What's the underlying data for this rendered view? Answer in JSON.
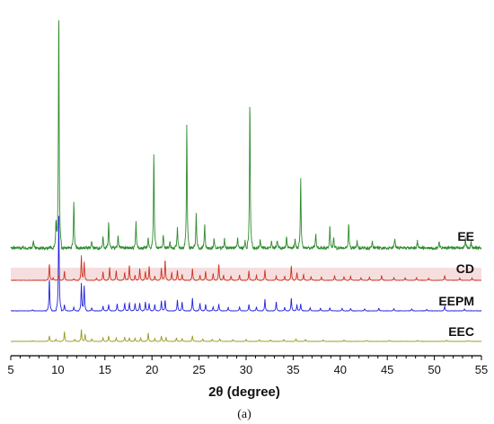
{
  "chart_data": {
    "type": "line",
    "title": "",
    "xlabel": "2θ (degree)",
    "ylabel": "",
    "xlim": [
      5,
      55
    ],
    "x_ticks": [
      5,
      10,
      15,
      20,
      25,
      30,
      35,
      40,
      45,
      50,
      55
    ],
    "y_axis_visible": false,
    "grid": false,
    "legend": "none; each pattern labelled at its right end",
    "caption": "(a)",
    "series": [
      {
        "name": "EE",
        "color": "#2e8b2e",
        "peaks": [
          [
            7.4,
            0.03
          ],
          [
            9.8,
            0.12
          ],
          [
            10.1,
            1.0
          ],
          [
            11.7,
            0.2
          ],
          [
            13.6,
            0.03
          ],
          [
            14.8,
            0.05
          ],
          [
            15.4,
            0.11
          ],
          [
            16.4,
            0.05
          ],
          [
            18.3,
            0.11
          ],
          [
            19.6,
            0.04
          ],
          [
            20.2,
            0.4
          ],
          [
            21.2,
            0.06
          ],
          [
            21.9,
            0.03
          ],
          [
            22.7,
            0.09
          ],
          [
            23.7,
            0.52
          ],
          [
            24.7,
            0.15
          ],
          [
            25.6,
            0.1
          ],
          [
            26.6,
            0.04
          ],
          [
            27.7,
            0.04
          ],
          [
            29.1,
            0.04
          ],
          [
            29.9,
            0.03
          ],
          [
            30.4,
            0.62
          ],
          [
            31.5,
            0.04
          ],
          [
            32.7,
            0.03
          ],
          [
            33.3,
            0.03
          ],
          [
            34.3,
            0.05
          ],
          [
            35.2,
            0.04
          ],
          [
            35.8,
            0.29
          ],
          [
            37.4,
            0.06
          ],
          [
            38.9,
            0.09
          ],
          [
            39.3,
            0.05
          ],
          [
            40.9,
            0.11
          ],
          [
            41.8,
            0.03
          ],
          [
            43.4,
            0.03
          ],
          [
            45.8,
            0.04
          ],
          [
            48.2,
            0.03
          ],
          [
            50.5,
            0.03
          ],
          [
            53.3,
            0.04
          ],
          [
            53.9,
            0.03
          ]
        ]
      },
      {
        "name": "CD",
        "color": "#cc3322",
        "peaks": [
          [
            9.1,
            0.62
          ],
          [
            9.5,
            0.1
          ],
          [
            10.1,
            0.15
          ],
          [
            10.7,
            0.34
          ],
          [
            11.7,
            0.06
          ],
          [
            12.5,
            0.92
          ],
          [
            12.8,
            0.7
          ],
          [
            14.1,
            0.08
          ],
          [
            14.8,
            0.33
          ],
          [
            15.5,
            0.48
          ],
          [
            16.2,
            0.36
          ],
          [
            17.1,
            0.3
          ],
          [
            17.6,
            0.58
          ],
          [
            18.2,
            0.2
          ],
          [
            18.7,
            0.44
          ],
          [
            19.3,
            0.34
          ],
          [
            19.7,
            0.52
          ],
          [
            20.3,
            0.16
          ],
          [
            21.0,
            0.46
          ],
          [
            21.4,
            0.78
          ],
          [
            22.1,
            0.3
          ],
          [
            22.7,
            0.38
          ],
          [
            23.2,
            0.22
          ],
          [
            24.3,
            0.44
          ],
          [
            25.1,
            0.2
          ],
          [
            25.7,
            0.34
          ],
          [
            26.5,
            0.26
          ],
          [
            27.1,
            0.62
          ],
          [
            27.6,
            0.2
          ],
          [
            28.4,
            0.16
          ],
          [
            29.3,
            0.2
          ],
          [
            30.3,
            0.36
          ],
          [
            31.1,
            0.2
          ],
          [
            32.0,
            0.38
          ],
          [
            33.2,
            0.16
          ],
          [
            34.1,
            0.16
          ],
          [
            34.8,
            0.54
          ],
          [
            35.4,
            0.3
          ],
          [
            36.1,
            0.22
          ],
          [
            36.9,
            0.14
          ],
          [
            38.0,
            0.12
          ],
          [
            39.4,
            0.18
          ],
          [
            40.4,
            0.14
          ],
          [
            41.1,
            0.16
          ],
          [
            42.2,
            0.1
          ],
          [
            43.1,
            0.12
          ],
          [
            44.4,
            0.18
          ],
          [
            45.7,
            0.1
          ],
          [
            46.9,
            0.1
          ],
          [
            48.1,
            0.1
          ],
          [
            49.4,
            0.08
          ],
          [
            51.1,
            0.18
          ],
          [
            52.7,
            0.08
          ],
          [
            54.0,
            0.08
          ]
        ]
      },
      {
        "name": "EEPM",
        "color": "#2222dd",
        "peaks": [
          [
            7.3,
            0.04
          ],
          [
            9.1,
            1.3
          ],
          [
            10.1,
            4.0
          ],
          [
            10.7,
            0.25
          ],
          [
            11.7,
            0.15
          ],
          [
            12.5,
            1.1
          ],
          [
            12.8,
            1.02
          ],
          [
            13.6,
            0.12
          ],
          [
            14.8,
            0.2
          ],
          [
            15.4,
            0.25
          ],
          [
            16.3,
            0.28
          ],
          [
            17.1,
            0.3
          ],
          [
            17.6,
            0.32
          ],
          [
            18.2,
            0.3
          ],
          [
            18.7,
            0.32
          ],
          [
            19.3,
            0.36
          ],
          [
            19.7,
            0.3
          ],
          [
            20.3,
            0.26
          ],
          [
            21.0,
            0.4
          ],
          [
            21.4,
            0.44
          ],
          [
            22.7,
            0.44
          ],
          [
            23.2,
            0.36
          ],
          [
            24.3,
            0.52
          ],
          [
            25.1,
            0.3
          ],
          [
            25.7,
            0.26
          ],
          [
            26.5,
            0.16
          ],
          [
            27.1,
            0.26
          ],
          [
            28.1,
            0.14
          ],
          [
            29.3,
            0.16
          ],
          [
            30.3,
            0.26
          ],
          [
            31.1,
            0.16
          ],
          [
            32.0,
            0.46
          ],
          [
            33.2,
            0.36
          ],
          [
            34.1,
            0.14
          ],
          [
            34.8,
            0.5
          ],
          [
            35.4,
            0.24
          ],
          [
            35.8,
            0.28
          ],
          [
            36.8,
            0.12
          ],
          [
            37.9,
            0.1
          ],
          [
            38.9,
            0.12
          ],
          [
            40.2,
            0.1
          ],
          [
            41.1,
            0.1
          ],
          [
            42.6,
            0.08
          ],
          [
            44.1,
            0.1
          ],
          [
            45.7,
            0.08
          ],
          [
            47.6,
            0.08
          ],
          [
            49.2,
            0.06
          ],
          [
            51.1,
            0.2
          ],
          [
            53.2,
            0.08
          ]
        ]
      },
      {
        "name": "EEC",
        "color": "#999922",
        "peaks": [
          [
            7.3,
            0.03
          ],
          [
            9.1,
            0.3
          ],
          [
            9.8,
            0.12
          ],
          [
            10.7,
            0.55
          ],
          [
            11.8,
            0.12
          ],
          [
            12.5,
            0.66
          ],
          [
            12.9,
            0.4
          ],
          [
            13.6,
            0.14
          ],
          [
            14.8,
            0.2
          ],
          [
            15.4,
            0.3
          ],
          [
            16.2,
            0.2
          ],
          [
            17.1,
            0.24
          ],
          [
            17.6,
            0.2
          ],
          [
            18.2,
            0.18
          ],
          [
            18.8,
            0.2
          ],
          [
            19.6,
            0.46
          ],
          [
            20.3,
            0.16
          ],
          [
            21.0,
            0.3
          ],
          [
            21.5,
            0.2
          ],
          [
            22.6,
            0.2
          ],
          [
            23.2,
            0.16
          ],
          [
            24.3,
            0.32
          ],
          [
            25.4,
            0.14
          ],
          [
            26.4,
            0.12
          ],
          [
            27.2,
            0.14
          ],
          [
            28.6,
            0.1
          ],
          [
            30.0,
            0.1
          ],
          [
            31.4,
            0.1
          ],
          [
            32.6,
            0.08
          ],
          [
            34.0,
            0.1
          ],
          [
            35.3,
            0.14
          ],
          [
            36.3,
            0.1
          ],
          [
            38.2,
            0.08
          ],
          [
            40.4,
            0.08
          ],
          [
            42.8,
            0.06
          ],
          [
            45.2,
            0.06
          ],
          [
            48.2,
            0.05
          ],
          [
            51.3,
            0.06
          ],
          [
            53.6,
            0.05
          ]
        ]
      }
    ]
  }
}
